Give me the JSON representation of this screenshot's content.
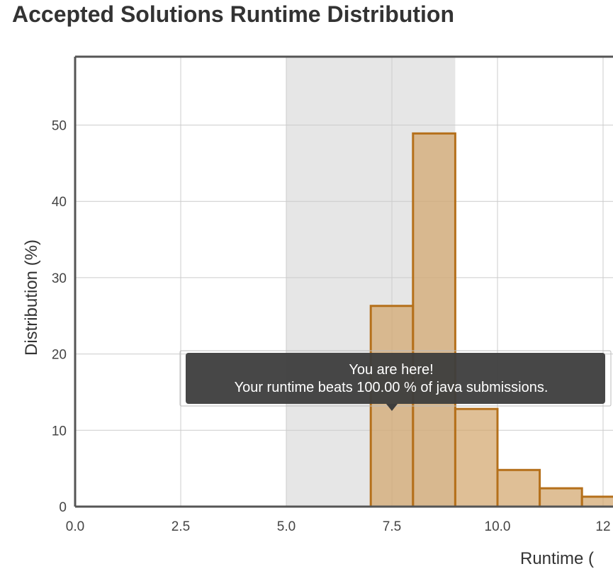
{
  "title": "Accepted Solutions Runtime Distribution",
  "colors": {
    "bar_fill": "#d2a46a",
    "bar_stroke": "#b5701b",
    "highlight_band": "#e6e6e6",
    "grid": "#cccccc",
    "axis": "#555555",
    "tooltip_bg": "#3d3d3d"
  },
  "chart_data": {
    "type": "bar",
    "title": "Accepted Solutions Runtime Distribution",
    "xlabel": "Runtime (",
    "ylabel": "Distribution (%)",
    "xlim": [
      0,
      12.5
    ],
    "ylim": [
      0,
      58
    ],
    "x_ticks": [
      "0.0",
      "2.5",
      "5.0",
      "7.5",
      "10.0",
      "12"
    ],
    "y_ticks": [
      "0",
      "10",
      "20",
      "30",
      "40",
      "50"
    ],
    "grid": true,
    "highlight_range": [
      5.0,
      9.0
    ],
    "bins": [
      {
        "start": 7,
        "end": 8,
        "value": 26.3
      },
      {
        "start": 8,
        "end": 9,
        "value": 48.9
      },
      {
        "start": 9,
        "end": 10,
        "value": 12.8
      },
      {
        "start": 10,
        "end": 11,
        "value": 4.8
      },
      {
        "start": 11,
        "end": 12,
        "value": 2.4
      },
      {
        "start": 12,
        "end": 13,
        "value": 1.3
      }
    ],
    "annotation": {
      "x": 7.5,
      "line1": "You are here!",
      "line2": "Your runtime beats 100.00 % of java submissions."
    }
  }
}
